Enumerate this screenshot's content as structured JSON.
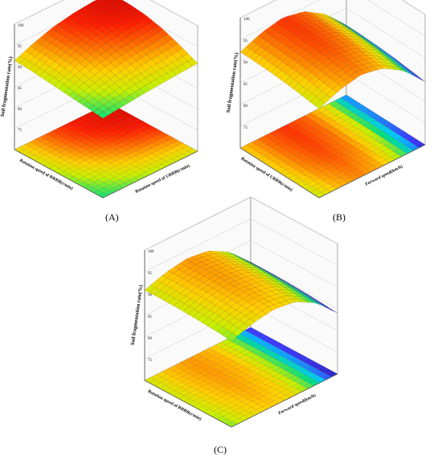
{
  "colors": {
    "gradient": [
      "#2a1a9e",
      "#3b3bff",
      "#00c8ff",
      "#00e080",
      "#c8f000",
      "#ffd000",
      "#ff7a00",
      "#ff1e00",
      "#c80000"
    ],
    "frame": "#555555",
    "grid": "#bdbdbd"
  },
  "chart_data": [
    {
      "type": "surface",
      "panel_label": "(A)",
      "zlabel": "Soil fragmentation rate(%)",
      "xlabel": "Rotation speed of RRRB(r/min)",
      "ylabel": "Rotation speed of URRB(r/min)",
      "zlim": [
        70,
        100
      ],
      "zticks": [
        "70",
        "75",
        "80",
        "85",
        "90",
        "95",
        "100"
      ],
      "grid": true,
      "z_grid": [
        [
          89,
          89.5,
          90,
          90.4,
          90.7,
          91
        ],
        [
          89.5,
          90.4,
          91.3,
          92,
          92.5,
          93
        ],
        [
          90,
          91.4,
          92.6,
          93.5,
          94.2,
          94.7
        ],
        [
          90.5,
          92.3,
          93.7,
          94.7,
          95.4,
          95.8
        ],
        [
          91,
          92.9,
          94.4,
          95.4,
          96,
          96.3
        ],
        [
          91.3,
          93.2,
          94.7,
          95.6,
          96.1,
          96.3
        ]
      ]
    },
    {
      "type": "surface",
      "panel_label": "(B)",
      "zlabel": "Soil fragmentation rate(%)",
      "xlabel": "Rotation speed of URRB(r/min)",
      "ylabel": "Forward speed(km/h)",
      "zlim": [
        70,
        100
      ],
      "zticks": [
        "70",
        "75",
        "80",
        "85",
        "90",
        "95",
        "100"
      ],
      "grid": true,
      "z_grid": [
        [
          90.5,
          92.5,
          93.5,
          92.5,
          89.5,
          84.5
        ],
        [
          91,
          93,
          94,
          93,
          90,
          85
        ],
        [
          91.5,
          93.5,
          94.5,
          93.5,
          90.5,
          85.5
        ],
        [
          91.8,
          93.8,
          94.8,
          93.8,
          90.8,
          85.8
        ],
        [
          92,
          94,
          95,
          94,
          91,
          86
        ],
        [
          92.1,
          94.1,
          95.1,
          94.1,
          91.1,
          86.1
        ]
      ]
    },
    {
      "type": "surface",
      "panel_label": "(C)",
      "zlabel": "Soil fragmentation rate(%)",
      "xlabel": "Rotation speed of RRRB(r/min)",
      "ylabel": "Forward speed(km/h)",
      "zlim": [
        70,
        100
      ],
      "zticks": [
        "70",
        "75",
        "80",
        "85",
        "90",
        "95",
        "100"
      ],
      "grid": true,
      "z_grid": [
        [
          89.8,
          91.4,
          92.2,
          91.5,
          88.8,
          84
        ],
        [
          90.2,
          91.8,
          92.6,
          91.9,
          89.2,
          84.4
        ],
        [
          90.5,
          92.1,
          92.9,
          92.2,
          89.5,
          84.7
        ],
        [
          90.7,
          92.3,
          93.1,
          92.4,
          89.7,
          84.9
        ],
        [
          90.8,
          92.4,
          93.2,
          92.5,
          89.8,
          85
        ],
        [
          90.8,
          92.4,
          93.2,
          92.5,
          89.8,
          85
        ]
      ]
    }
  ]
}
